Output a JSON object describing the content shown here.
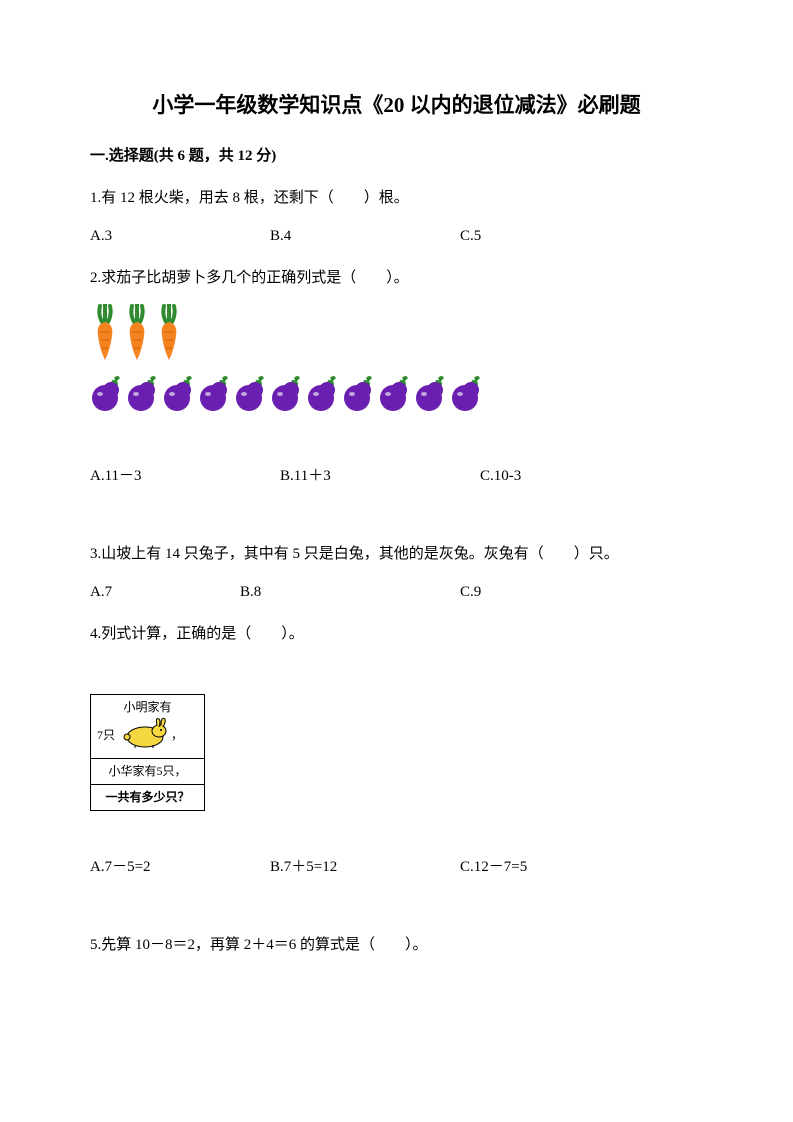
{
  "title": "小学一年级数学知识点《20 以内的退位减法》必刷题",
  "section": "一.选择题(共 6 题，共 12 分)",
  "q1": {
    "text": "1.有 12 根火柴，用去 8 根，还剩下（　　）根。",
    "a": "A.3",
    "b": "B.4",
    "c": "C.5"
  },
  "q2": {
    "text": "2.求茄子比胡萝卜多几个的正确列式是（　　）。",
    "a": "A.11－3",
    "b": "B.11＋3",
    "c": "C.10-3"
  },
  "q3": {
    "text": "3.山坡上有 14 只兔子，其中有 5 只是白兔，其他的是灰兔。灰兔有（　　）只。",
    "a": "A.7",
    "b": "B.8",
    "c": "C.9"
  },
  "q4": {
    "text": "4.列式计算，正确的是（　　）。",
    "box_line1": "小明家有",
    "box_line1b": "7只",
    "box_comma": "，",
    "box_line2": "小华家有5只，",
    "box_line3": "一共有多少只？",
    "a": "A.7－5=2",
    "b": "B.7＋5=12",
    "c": "C.12－7=5"
  },
  "q5": {
    "text": "5.先算 10－8＝2，再算 2＋4＝6 的算式是（　　）。"
  },
  "visuals": {
    "carrot_count": 3,
    "eggplant_count": 11,
    "carrot_color_body": "#f58220",
    "carrot_color_leaf": "#2e8b2e",
    "eggplant_color_body": "#6a1fb0",
    "eggplant_color_leaf": "#2e8b2e",
    "rabbit_color": "#f5d742"
  }
}
